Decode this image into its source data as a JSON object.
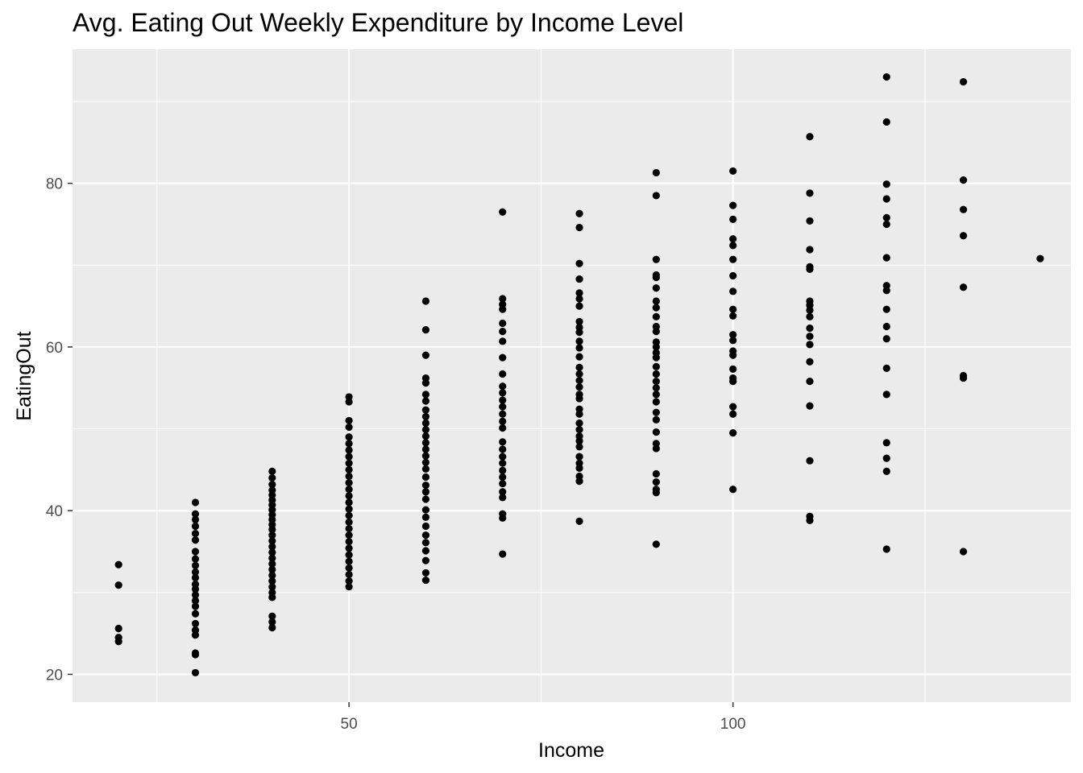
{
  "chart_data": {
    "type": "scatter",
    "title": "Avg. Eating Out Weekly Expenditure by Income Level",
    "xlabel": "Income",
    "ylabel": "EatingOut",
    "xlim": [
      14,
      144
    ],
    "ylim": [
      16.6,
      96.4
    ],
    "x_ticks": [
      50,
      100
    ],
    "y_ticks": [
      20,
      40,
      60,
      80
    ],
    "x_tick_labels": [
      "50",
      "100"
    ],
    "y_tick_labels": [
      "20",
      "40",
      "60",
      "80"
    ],
    "grid": true,
    "point_color": "#000000",
    "panel_color": "#ebebeb",
    "grid_color": "#ffffff",
    "points": [
      {
        "x": 20,
        "y": [
          33.4,
          30.9,
          25.6,
          24.5,
          24.0
        ]
      },
      {
        "x": 30,
        "y": [
          41.0,
          39.6,
          38.9,
          38.1,
          37.2,
          36.4,
          35.0,
          34.1,
          33.3,
          32.5,
          31.8,
          31.0,
          30.4,
          29.7,
          29.0,
          28.3,
          27.4,
          26.2,
          25.4,
          24.8,
          22.6,
          22.4,
          20.2
        ]
      },
      {
        "x": 40,
        "y": [
          44.8,
          44.0,
          43.2,
          42.5,
          41.9,
          41.3,
          40.7,
          40.1,
          39.5,
          38.9,
          38.3,
          37.7,
          37.0,
          36.3,
          35.6,
          34.9,
          34.2,
          33.5,
          32.8,
          32.1,
          31.4,
          30.7,
          30.0,
          29.4,
          27.1,
          26.4,
          25.7
        ]
      },
      {
        "x": 50,
        "y": [
          53.9,
          53.3,
          51.0,
          50.2,
          49.0,
          48.2,
          47.4,
          46.6,
          45.8,
          45.0,
          44.2,
          43.4,
          42.6,
          41.8,
          41.0,
          40.2,
          39.4,
          38.6,
          37.8,
          37.0,
          36.2,
          35.4,
          34.6,
          33.8,
          33.0,
          32.2,
          31.4,
          30.7
        ]
      },
      {
        "x": 60,
        "y": [
          65.6,
          62.1,
          59.0,
          56.2,
          55.6,
          54.2,
          53.4,
          52.3,
          51.5,
          50.7,
          49.9,
          49.1,
          48.3,
          47.5,
          46.7,
          45.9,
          45.1,
          44.1,
          43.1,
          42.3,
          41.4,
          40.1,
          39.2,
          38.1,
          37.0,
          36.1,
          35.1,
          33.9,
          32.4,
          31.5
        ]
      },
      {
        "x": 70,
        "y": [
          76.5,
          65.9,
          65.2,
          64.6,
          62.9,
          61.9,
          60.7,
          58.7,
          56.7,
          55.2,
          54.4,
          53.5,
          52.7,
          51.8,
          50.9,
          50.1,
          48.4,
          47.5,
          46.6,
          45.8,
          44.9,
          44.1,
          43.3,
          42.3,
          41.6,
          39.6,
          39.1,
          34.7
        ]
      },
      {
        "x": 80,
        "y": [
          76.3,
          74.6,
          70.2,
          68.3,
          66.6,
          65.9,
          65.0,
          63.1,
          62.4,
          61.8,
          60.7,
          59.9,
          58.8,
          57.5,
          56.7,
          55.9,
          55.1,
          54.2,
          53.7,
          52.4,
          51.8,
          50.7,
          49.9,
          49.1,
          48.5,
          47.8,
          46.6,
          45.8,
          45.2,
          44.2,
          43.6,
          38.7
        ]
      },
      {
        "x": 90,
        "y": [
          81.3,
          78.5,
          70.7,
          68.8,
          68.5,
          67.2,
          65.6,
          64.8,
          63.7,
          62.5,
          61.9,
          60.6,
          60.0,
          59.3,
          58.7,
          57.6,
          56.7,
          55.8,
          55.0,
          54.2,
          53.3,
          52.0,
          51.1,
          49.6,
          48.2,
          47.6,
          44.5,
          43.5,
          42.6,
          42.2,
          35.9
        ]
      },
      {
        "x": 100,
        "y": [
          81.5,
          77.3,
          75.6,
          73.2,
          72.4,
          70.7,
          68.7,
          66.8,
          64.6,
          63.8,
          61.5,
          60.8,
          59.5,
          59.0,
          57.3,
          56.2,
          55.8,
          52.7,
          51.8,
          49.5,
          42.6
        ]
      },
      {
        "x": 110,
        "y": [
          85.7,
          78.8,
          75.4,
          71.9,
          69.8,
          69.5,
          65.6,
          65.1,
          64.5,
          63.7,
          62.3,
          61.3,
          60.3,
          58.2,
          55.8,
          52.8,
          46.1,
          39.3,
          38.8
        ]
      },
      {
        "x": 120,
        "y": [
          93.0,
          87.5,
          79.9,
          78.1,
          75.8,
          75.0,
          70.9,
          67.5,
          66.9,
          64.6,
          62.5,
          61.0,
          57.4,
          54.2,
          48.3,
          46.4,
          44.8,
          35.3
        ]
      },
      {
        "x": 130,
        "y": [
          92.4,
          80.4,
          76.8,
          73.6,
          67.3,
          56.5,
          56.2,
          35.0
        ]
      },
      {
        "x": 140,
        "y": [
          70.8
        ]
      }
    ]
  }
}
